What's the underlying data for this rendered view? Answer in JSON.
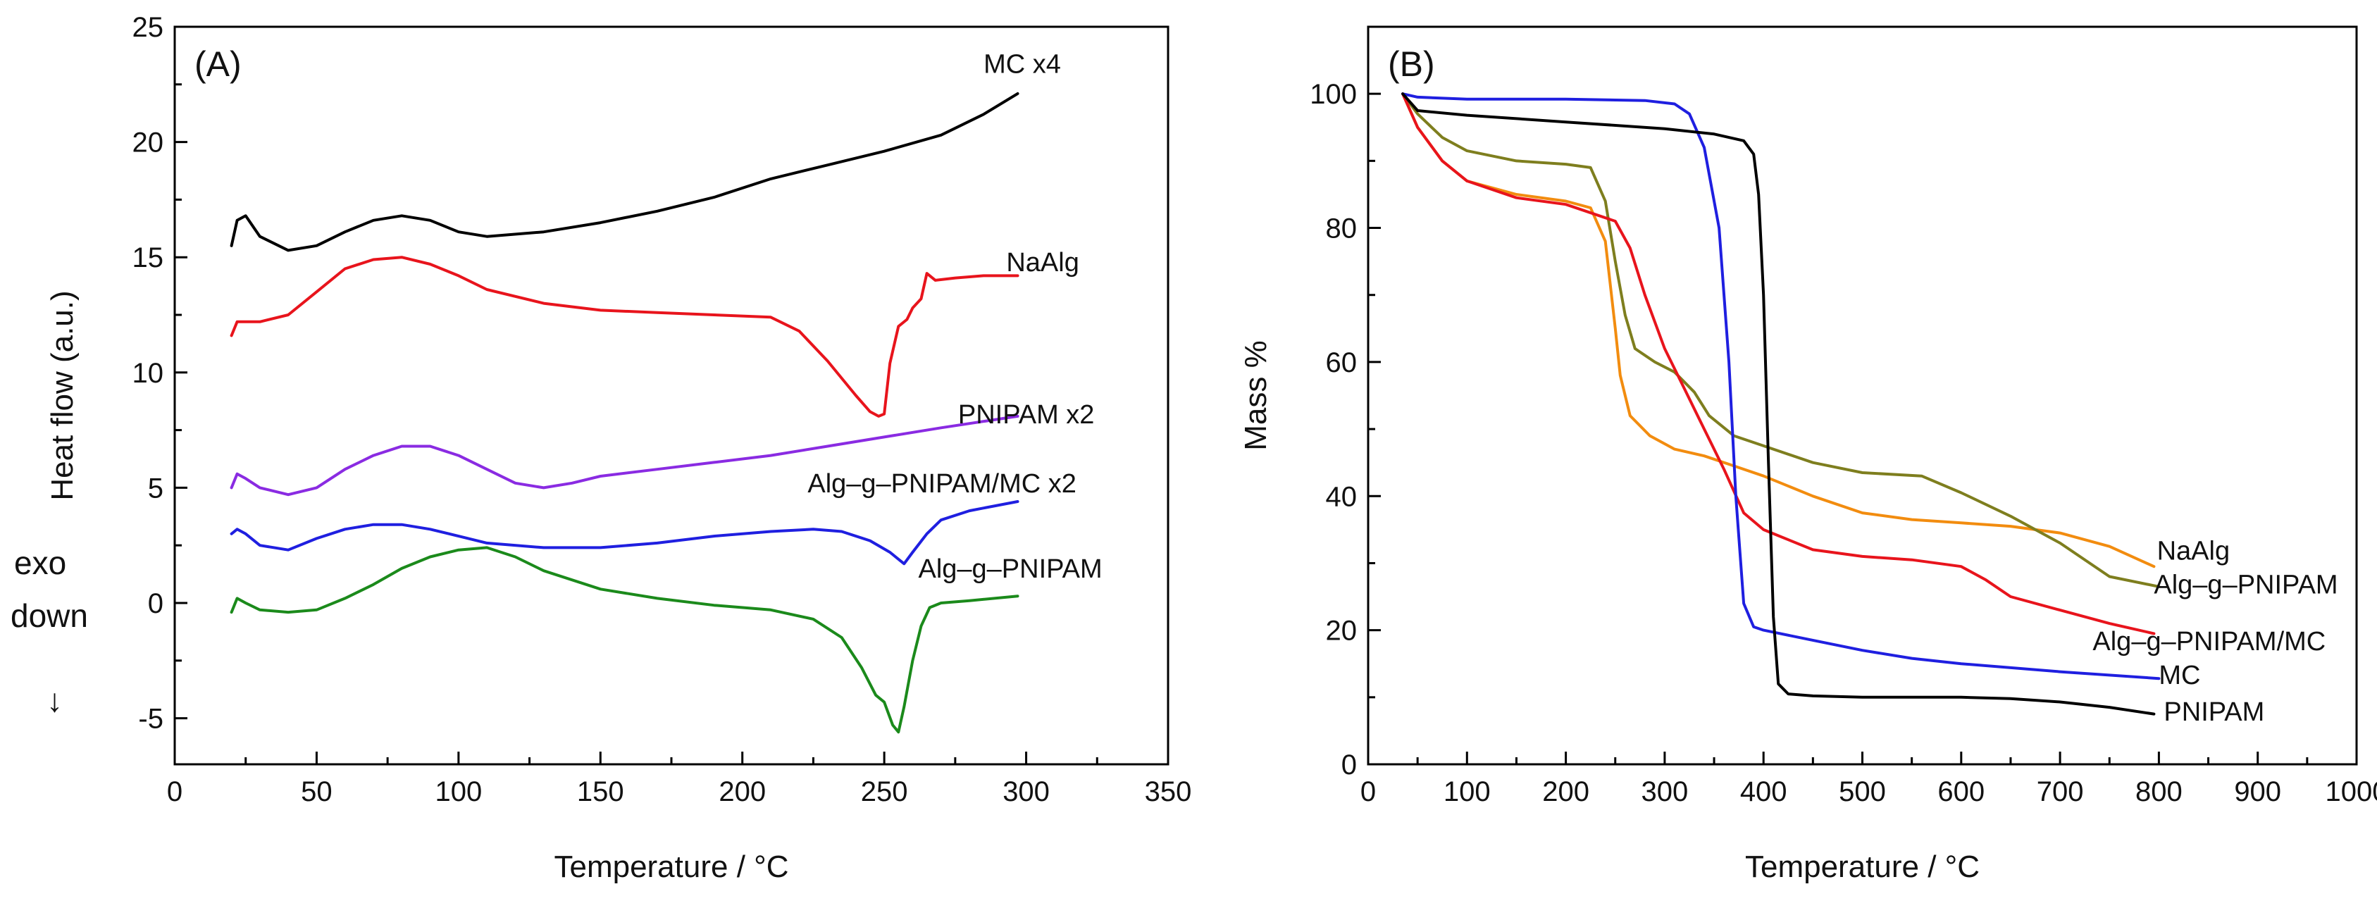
{
  "chart_data": [
    {
      "panel": "(A)",
      "type": "line",
      "xlabel": "Temperature / °C",
      "ylabel": "Heat flow (a.u.)",
      "xlim": [
        0,
        350
      ],
      "ylim": [
        -7,
        25
      ],
      "xticks": [
        0,
        50,
        100,
        150,
        200,
        250,
        300,
        350
      ],
      "yticks": [
        -5,
        0,
        5,
        10,
        15,
        20,
        25
      ],
      "xtick_labels": [
        "0",
        "50",
        "100",
        "150",
        "200",
        "250",
        "300",
        "350"
      ],
      "ytick_labels": [
        "-5",
        "0",
        "5",
        "10",
        "15",
        "20",
        "25"
      ],
      "grid": false,
      "annotations": {
        "exo_line1": "exo",
        "exo_line2": "down",
        "arrow": "↓"
      },
      "series": [
        {
          "name": "MC x4",
          "label_x": 285,
          "label_y": 23.0,
          "color": "#000000",
          "points": [
            [
              20,
              15.5
            ],
            [
              22,
              16.6
            ],
            [
              25,
              16.8
            ],
            [
              30,
              15.9
            ],
            [
              40,
              15.3
            ],
            [
              50,
              15.5
            ],
            [
              60,
              16.1
            ],
            [
              70,
              16.6
            ],
            [
              80,
              16.8
            ],
            [
              90,
              16.6
            ],
            [
              100,
              16.1
            ],
            [
              110,
              15.9
            ],
            [
              130,
              16.1
            ],
            [
              150,
              16.5
            ],
            [
              170,
              17.0
            ],
            [
              190,
              17.6
            ],
            [
              210,
              18.4
            ],
            [
              230,
              19.0
            ],
            [
              250,
              19.6
            ],
            [
              270,
              20.3
            ],
            [
              285,
              21.2
            ],
            [
              297,
              22.1
            ]
          ]
        },
        {
          "name": "NaAlg",
          "label_x": 293,
          "label_y": 14.4,
          "color": "#e8141c",
          "points": [
            [
              20,
              11.6
            ],
            [
              22,
              12.2
            ],
            [
              30,
              12.2
            ],
            [
              40,
              12.5
            ],
            [
              50,
              13.5
            ],
            [
              60,
              14.5
            ],
            [
              70,
              14.9
            ],
            [
              80,
              15.0
            ],
            [
              90,
              14.7
            ],
            [
              100,
              14.2
            ],
            [
              110,
              13.6
            ],
            [
              130,
              13.0
            ],
            [
              150,
              12.7
            ],
            [
              170,
              12.6
            ],
            [
              190,
              12.5
            ],
            [
              210,
              12.4
            ],
            [
              220,
              11.8
            ],
            [
              230,
              10.5
            ],
            [
              240,
              9.0
            ],
            [
              245,
              8.3
            ],
            [
              248,
              8.1
            ],
            [
              250,
              8.2
            ],
            [
              252,
              10.4
            ],
            [
              255,
              12.0
            ],
            [
              258,
              12.3
            ],
            [
              260,
              12.8
            ],
            [
              263,
              13.2
            ],
            [
              265,
              14.3
            ],
            [
              268,
              14.0
            ],
            [
              275,
              14.1
            ],
            [
              285,
              14.2
            ],
            [
              297,
              14.2
            ]
          ]
        },
        {
          "name": "PNIPAM x2",
          "label_x": 276,
          "label_y": 7.8,
          "color": "#8a2be2",
          "points": [
            [
              20,
              5.0
            ],
            [
              22,
              5.6
            ],
            [
              25,
              5.4
            ],
            [
              30,
              5.0
            ],
            [
              40,
              4.7
            ],
            [
              50,
              5.0
            ],
            [
              60,
              5.8
            ],
            [
              70,
              6.4
            ],
            [
              80,
              6.8
            ],
            [
              90,
              6.8
            ],
            [
              100,
              6.4
            ],
            [
              110,
              5.8
            ],
            [
              120,
              5.2
            ],
            [
              130,
              5.0
            ],
            [
              140,
              5.2
            ],
            [
              150,
              5.5
            ],
            [
              170,
              5.8
            ],
            [
              190,
              6.1
            ],
            [
              210,
              6.4
            ],
            [
              230,
              6.8
            ],
            [
              250,
              7.2
            ],
            [
              270,
              7.6
            ],
            [
              297,
              8.1
            ]
          ]
        },
        {
          "name": "Alg–g–PNIPAM/MC x2",
          "label_x": 223,
          "label_y": 4.8,
          "color": "#1f1fe0",
          "points": [
            [
              20,
              3.0
            ],
            [
              22,
              3.2
            ],
            [
              25,
              3.0
            ],
            [
              30,
              2.5
            ],
            [
              40,
              2.3
            ],
            [
              50,
              2.8
            ],
            [
              60,
              3.2
            ],
            [
              70,
              3.4
            ],
            [
              80,
              3.4
            ],
            [
              90,
              3.2
            ],
            [
              100,
              2.9
            ],
            [
              110,
              2.6
            ],
            [
              130,
              2.4
            ],
            [
              150,
              2.4
            ],
            [
              170,
              2.6
            ],
            [
              190,
              2.9
            ],
            [
              210,
              3.1
            ],
            [
              225,
              3.2
            ],
            [
              235,
              3.1
            ],
            [
              245,
              2.7
            ],
            [
              252,
              2.2
            ],
            [
              257,
              1.7
            ],
            [
              260,
              2.2
            ],
            [
              265,
              3.0
            ],
            [
              270,
              3.6
            ],
            [
              280,
              4.0
            ],
            [
              297,
              4.4
            ]
          ]
        },
        {
          "name": "Alg–g–PNIPAM",
          "label_x": 262,
          "label_y": 1.1,
          "color": "#1b8a1b",
          "points": [
            [
              20,
              -0.4
            ],
            [
              22,
              0.2
            ],
            [
              25,
              0.0
            ],
            [
              30,
              -0.3
            ],
            [
              40,
              -0.4
            ],
            [
              50,
              -0.3
            ],
            [
              60,
              0.2
            ],
            [
              70,
              0.8
            ],
            [
              80,
              1.5
            ],
            [
              90,
              2.0
            ],
            [
              100,
              2.3
            ],
            [
              110,
              2.4
            ],
            [
              120,
              2.0
            ],
            [
              130,
              1.4
            ],
            [
              150,
              0.6
            ],
            [
              170,
              0.2
            ],
            [
              190,
              -0.1
            ],
            [
              210,
              -0.3
            ],
            [
              225,
              -0.7
            ],
            [
              235,
              -1.5
            ],
            [
              242,
              -2.8
            ],
            [
              247,
              -4.0
            ],
            [
              250,
              -4.3
            ],
            [
              253,
              -5.3
            ],
            [
              255,
              -5.6
            ],
            [
              257,
              -4.5
            ],
            [
              260,
              -2.5
            ],
            [
              263,
              -1.0
            ],
            [
              266,
              -0.2
            ],
            [
              270,
              0.0
            ],
            [
              280,
              0.1
            ],
            [
              297,
              0.3
            ]
          ]
        }
      ]
    },
    {
      "panel": "(B)",
      "type": "line",
      "xlabel": "Temperature / °C",
      "ylabel": "Mass %",
      "xlim": [
        0,
        1000
      ],
      "ylim": [
        0,
        110
      ],
      "xticks": [
        0,
        100,
        200,
        300,
        400,
        500,
        600,
        700,
        800,
        900,
        1000
      ],
      "yticks": [
        0,
        20,
        40,
        60,
        80,
        100
      ],
      "xtick_labels": [
        "0",
        "100",
        "200",
        "300",
        "400",
        "500",
        "600",
        "700",
        "800",
        "900",
        "1000"
      ],
      "ytick_labels": [
        "0",
        "20",
        "40",
        "60",
        "80",
        "100"
      ],
      "grid": false,
      "series": [
        {
          "name": "NaAlg",
          "label_x": 798,
          "label_y": 30.5,
          "color": "#f28c0f",
          "points": [
            [
              35,
              100
            ],
            [
              50,
              95
            ],
            [
              75,
              90
            ],
            [
              100,
              87
            ],
            [
              150,
              85
            ],
            [
              200,
              84
            ],
            [
              225,
              83
            ],
            [
              240,
              78
            ],
            [
              250,
              65
            ],
            [
              255,
              58
            ],
            [
              265,
              52
            ],
            [
              285,
              49
            ],
            [
              310,
              47
            ],
            [
              340,
              46
            ],
            [
              370,
              44.5
            ],
            [
              400,
              43
            ],
            [
              450,
              40
            ],
            [
              500,
              37.5
            ],
            [
              550,
              36.5
            ],
            [
              600,
              36
            ],
            [
              650,
              35.5
            ],
            [
              700,
              34.5
            ],
            [
              750,
              32.5
            ],
            [
              795,
              29.5
            ]
          ]
        },
        {
          "name": "Alg–g–PNIPAM",
          "label_x": 795,
          "label_y": 25.5,
          "color": "#7e7e1e",
          "points": [
            [
              35,
              100
            ],
            [
              50,
              97
            ],
            [
              75,
              93.5
            ],
            [
              100,
              91.5
            ],
            [
              150,
              90
            ],
            [
              200,
              89.5
            ],
            [
              225,
              89
            ],
            [
              240,
              84
            ],
            [
              250,
              75
            ],
            [
              260,
              67
            ],
            [
              270,
              62
            ],
            [
              290,
              60
            ],
            [
              310,
              58.5
            ],
            [
              330,
              55.5
            ],
            [
              345,
              52
            ],
            [
              370,
              49
            ],
            [
              400,
              47.5
            ],
            [
              450,
              45
            ],
            [
              500,
              43.5
            ],
            [
              560,
              43
            ],
            [
              600,
              40.5
            ],
            [
              650,
              37
            ],
            [
              700,
              33
            ],
            [
              750,
              28
            ],
            [
              800,
              26.5
            ]
          ]
        },
        {
          "name": "Alg–g–PNIPAM/MC",
          "label_x": 733,
          "label_y": 17.0,
          "color": "#e8141c",
          "points": [
            [
              35,
              100
            ],
            [
              50,
              95
            ],
            [
              75,
              90
            ],
            [
              100,
              87
            ],
            [
              150,
              84.5
            ],
            [
              200,
              83.5
            ],
            [
              250,
              81
            ],
            [
              265,
              77
            ],
            [
              280,
              70
            ],
            [
              300,
              62
            ],
            [
              320,
              56
            ],
            [
              340,
              50
            ],
            [
              360,
              44
            ],
            [
              380,
              37.5
            ],
            [
              400,
              35
            ],
            [
              450,
              32
            ],
            [
              500,
              31
            ],
            [
              550,
              30.5
            ],
            [
              600,
              29.5
            ],
            [
              625,
              27.5
            ],
            [
              650,
              25
            ],
            [
              700,
              23
            ],
            [
              750,
              21
            ],
            [
              795,
              19.5
            ]
          ]
        },
        {
          "name": "MC",
          "label_x": 800,
          "label_y": 12.0,
          "color": "#1f1fe0",
          "points": [
            [
              35,
              100
            ],
            [
              50,
              99.5
            ],
            [
              100,
              99.2
            ],
            [
              200,
              99.2
            ],
            [
              280,
              99
            ],
            [
              310,
              98.5
            ],
            [
              325,
              97
            ],
            [
              340,
              92
            ],
            [
              355,
              80
            ],
            [
              365,
              60
            ],
            [
              372,
              40
            ],
            [
              380,
              24
            ],
            [
              390,
              20.5
            ],
            [
              400,
              20
            ],
            [
              450,
              18.5
            ],
            [
              500,
              17
            ],
            [
              550,
              15.8
            ],
            [
              600,
              15
            ],
            [
              700,
              13.8
            ],
            [
              800,
              12.8
            ]
          ]
        },
        {
          "name": "PNIPAM",
          "label_x": 805,
          "label_y": 6.5,
          "color": "#000000",
          "points": [
            [
              35,
              100
            ],
            [
              50,
              97.5
            ],
            [
              100,
              96.8
            ],
            [
              200,
              95.8
            ],
            [
              300,
              94.8
            ],
            [
              350,
              94
            ],
            [
              380,
              93
            ],
            [
              390,
              91
            ],
            [
              395,
              85
            ],
            [
              400,
              70
            ],
            [
              405,
              45
            ],
            [
              410,
              22
            ],
            [
              415,
              12
            ],
            [
              425,
              10.5
            ],
            [
              450,
              10.2
            ],
            [
              500,
              10
            ],
            [
              600,
              10
            ],
            [
              650,
              9.8
            ],
            [
              700,
              9.3
            ],
            [
              750,
              8.5
            ],
            [
              795,
              7.5
            ]
          ]
        }
      ]
    }
  ]
}
